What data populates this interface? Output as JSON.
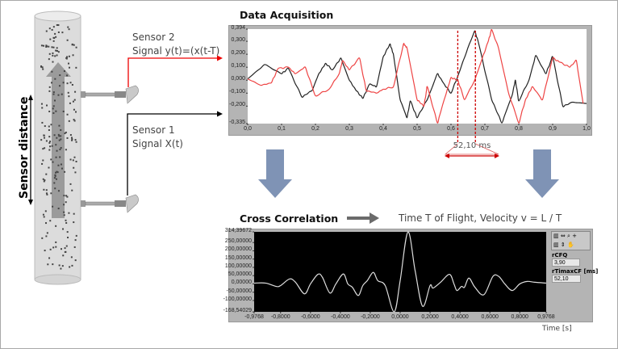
{
  "left": {
    "axis_label": "Sensor distance",
    "sensor2": {
      "name": "Sensor 2",
      "signal": "Signal y(t)=(x(t-T)"
    },
    "sensor1": {
      "name": "Sensor 1",
      "signal": "Signal X(t)"
    }
  },
  "titles": {
    "acquisition": "Data Acquisition",
    "correlation": "Cross Correlation",
    "flight": "Time T of Flight, Velocity v = L / T"
  },
  "delay_label": "52,10 ms",
  "colors": {
    "signal_x": "#222222",
    "signal_y": "#ee4444",
    "marker": "#cc0000",
    "arrow": "#7f93b5"
  },
  "panel": {
    "rCFQ_label": "rCFQ",
    "rCFQ_value": "3,90",
    "rTimaxCF_label": "rTimaxCF [ms]",
    "rTimaxCF_value": "52,10"
  },
  "chart_data": [
    {
      "type": "line",
      "title": "Data Acquisition",
      "ylim": [
        -0.335,
        0.394
      ],
      "xlim": [
        0,
        1
      ],
      "yticks": [
        "0,394",
        "0,300",
        "0,200",
        "0,100",
        "0,000",
        "-0,100",
        "-0,200",
        "-0,335"
      ],
      "ytick_values": [
        0.394,
        0.3,
        0.2,
        0.1,
        0,
        -0.1,
        -0.2,
        -0.335
      ],
      "xticks": [
        "0,0",
        "0,1",
        "0,2",
        "0,3",
        "0,4",
        "0,5",
        "0,6",
        "0,7",
        "0,8",
        "0,9",
        "1,0"
      ],
      "markers": [
        0.62,
        0.672
      ],
      "series": [
        {
          "name": "Signal X(t)",
          "color": "#222222",
          "points": [
            [
              0,
              0.01
            ],
            [
              0.05,
              0.12
            ],
            [
              0.1,
              0.05
            ],
            [
              0.12,
              0.09
            ],
            [
              0.16,
              -0.13
            ],
            [
              0.19,
              -0.08
            ],
            [
              0.21,
              0.05
            ],
            [
              0.23,
              0.13
            ],
            [
              0.25,
              0.08
            ],
            [
              0.275,
              0.17
            ],
            [
              0.3,
              0.0
            ],
            [
              0.32,
              -0.08
            ],
            [
              0.34,
              -0.14
            ],
            [
              0.36,
              -0.03
            ],
            [
              0.38,
              -0.05
            ],
            [
              0.4,
              0.18
            ],
            [
              0.42,
              0.28
            ],
            [
              0.43,
              0.2
            ],
            [
              0.45,
              -0.15
            ],
            [
              0.47,
              -0.29
            ],
            [
              0.48,
              -0.16
            ],
            [
              0.5,
              -0.29
            ],
            [
              0.53,
              -0.15
            ],
            [
              0.56,
              0.05
            ],
            [
              0.58,
              -0.03
            ],
            [
              0.6,
              -0.1
            ],
            [
              0.62,
              0.03
            ],
            [
              0.65,
              0.25
            ],
            [
              0.67,
              0.38
            ],
            [
              0.68,
              0.3
            ],
            [
              0.72,
              -0.15
            ],
            [
              0.75,
              -0.33
            ],
            [
              0.78,
              -0.12
            ],
            [
              0.79,
              0.0
            ],
            [
              0.8,
              -0.16
            ],
            [
              0.83,
              0.0
            ],
            [
              0.85,
              0.19
            ],
            [
              0.88,
              0.05
            ],
            [
              0.9,
              0.18
            ],
            [
              0.93,
              -0.2
            ],
            [
              0.96,
              -0.17
            ],
            [
              1.0,
              -0.18
            ]
          ]
        },
        {
          "name": "Signal y(t)",
          "color": "#ee4444",
          "points": [
            [
              0,
              0.01
            ],
            [
              0.04,
              -0.04
            ],
            [
              0.07,
              -0.02
            ],
            [
              0.09,
              0.09
            ],
            [
              0.12,
              0.1
            ],
            [
              0.14,
              0.05
            ],
            [
              0.17,
              0.1
            ],
            [
              0.2,
              -0.12
            ],
            [
              0.24,
              -0.07
            ],
            [
              0.27,
              0.05
            ],
            [
              0.28,
              0.15
            ],
            [
              0.3,
              0.08
            ],
            [
              0.33,
              0.17
            ],
            [
              0.35,
              -0.08
            ],
            [
              0.38,
              -0.1
            ],
            [
              0.4,
              -0.07
            ],
            [
              0.43,
              -0.05
            ],
            [
              0.46,
              0.28
            ],
            [
              0.47,
              0.25
            ],
            [
              0.5,
              -0.15
            ],
            [
              0.52,
              -0.2
            ],
            [
              0.53,
              -0.05
            ],
            [
              0.56,
              -0.33
            ],
            [
              0.58,
              -0.15
            ],
            [
              0.6,
              0.02
            ],
            [
              0.62,
              0.0
            ],
            [
              0.64,
              -0.15
            ],
            [
              0.67,
              0.0
            ],
            [
              0.69,
              0.15
            ],
            [
              0.71,
              0.3
            ],
            [
              0.72,
              0.39
            ],
            [
              0.74,
              0.25
            ],
            [
              0.77,
              -0.1
            ],
            [
              0.8,
              -0.33
            ],
            [
              0.82,
              -0.15
            ],
            [
              0.84,
              -0.05
            ],
            [
              0.87,
              -0.15
            ],
            [
              0.9,
              0.17
            ],
            [
              0.92,
              0.14
            ],
            [
              0.95,
              0.1
            ],
            [
              0.97,
              0.15
            ],
            [
              0.99,
              -0.18
            ]
          ]
        }
      ]
    },
    {
      "type": "line",
      "title": "Cross Correlation",
      "xlabel": "Time [s]",
      "ylim": [
        -168.54029,
        314.39672
      ],
      "xlim": [
        -0.9768,
        0.9768
      ],
      "yticks": [
        "314,39672",
        "250,00000",
        "200,00000",
        "150,00000",
        "100,00000",
        "50,00000",
        "0,00000",
        "-50,00000",
        "-100,00000",
        "-168,54029"
      ],
      "ytick_values": [
        314.39672,
        250,
        200,
        150,
        100,
        50,
        0,
        -50,
        -100,
        -168.54029
      ],
      "xticks": [
        "-0,9768",
        "-0,8000",
        "-0,6000",
        "-0,4000",
        "-0,2000",
        "0,0000",
        "0,2000",
        "0,4000",
        "0,6000",
        "0,8000",
        "0,9768"
      ],
      "xtick_values": [
        -0.9768,
        -0.8,
        -0.6,
        -0.4,
        -0.2,
        0,
        0.2,
        0.4,
        0.6,
        0.8,
        0.9768
      ],
      "series": [
        {
          "name": "Correlation",
          "color": "#dddddd",
          "points": [
            [
              -0.9768,
              5
            ],
            [
              -0.9,
              5
            ],
            [
              -0.83,
              -15
            ],
            [
              -0.8,
              -10
            ],
            [
              -0.74,
              30
            ],
            [
              -0.7,
              10
            ],
            [
              -0.64,
              -60
            ],
            [
              -0.6,
              0
            ],
            [
              -0.55,
              58
            ],
            [
              -0.52,
              40
            ],
            [
              -0.47,
              -55
            ],
            [
              -0.43,
              0
            ],
            [
              -0.38,
              60
            ],
            [
              -0.35,
              0
            ],
            [
              -0.32,
              -20
            ],
            [
              -0.28,
              -70
            ],
            [
              -0.25,
              -10
            ],
            [
              -0.22,
              20
            ],
            [
              -0.18,
              70
            ],
            [
              -0.15,
              20
            ],
            [
              -0.1,
              -10
            ],
            [
              -0.04,
              -168
            ],
            [
              0.0,
              20
            ],
            [
              0.052,
              314
            ],
            [
              0.1,
              80
            ],
            [
              0.15,
              -135
            ],
            [
              0.2,
              -10
            ],
            [
              0.22,
              -25
            ],
            [
              0.27,
              10
            ],
            [
              0.33,
              58
            ],
            [
              0.36,
              0
            ],
            [
              0.38,
              -40
            ],
            [
              0.41,
              -15
            ],
            [
              0.43,
              -20
            ],
            [
              0.46,
              35
            ],
            [
              0.5,
              -20
            ],
            [
              0.56,
              -65
            ],
            [
              0.62,
              45
            ],
            [
              0.66,
              45
            ],
            [
              0.7,
              0
            ],
            [
              0.75,
              -40
            ],
            [
              0.8,
              0
            ],
            [
              0.85,
              15
            ],
            [
              0.9,
              10
            ],
            [
              0.9768,
              5
            ]
          ]
        }
      ]
    }
  ]
}
